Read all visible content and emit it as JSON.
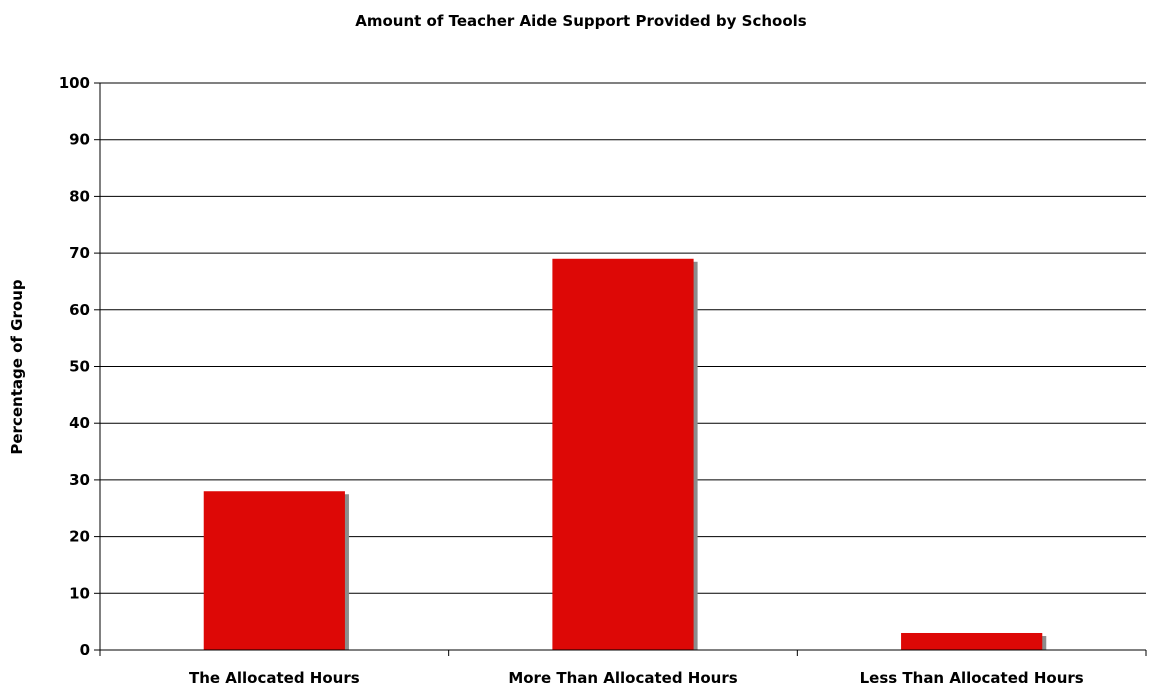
{
  "chart_data": {
    "type": "bar",
    "title": "Amount of Teacher Aide Support Provided by Schools",
    "xlabel": "",
    "ylabel": "Percentage of Group",
    "categories": [
      "The Allocated Hours",
      "More Than Allocated Hours",
      "Less Than Allocated Hours"
    ],
    "values": [
      28,
      69,
      3
    ],
    "ylim": [
      0,
      100
    ],
    "yticks": [
      "0",
      "10",
      "20",
      "30",
      "40",
      "50",
      "60",
      "70",
      "80",
      "90",
      "100"
    ],
    "grid": true,
    "legend": "none",
    "colors": {
      "bar": "#dd0806",
      "bar_shadow": "#8c8c8c",
      "grid": "#000000",
      "axis": "#000000"
    }
  }
}
